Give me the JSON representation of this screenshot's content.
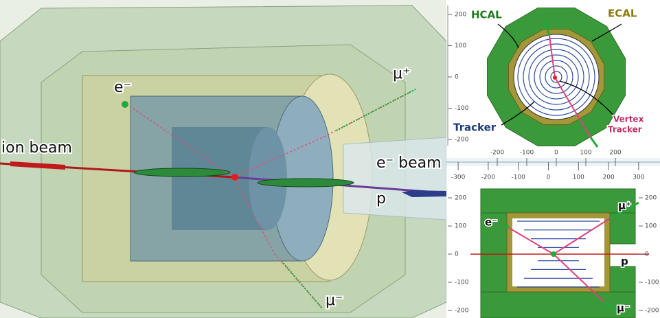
{
  "event_display": {
    "labels": {
      "ion_beam": "ion beam",
      "electron": "e⁻",
      "mu_plus": "μ⁺",
      "e_beam": "e⁻ beam",
      "proton": "p",
      "mu_minus": "μ⁻"
    }
  },
  "top_view": {
    "hcal": "HCAL",
    "ecal": "ECAL",
    "tracker": "Tracker",
    "vertex_tracker": [
      "Vertex",
      "Tracker"
    ],
    "yticks": [
      200,
      100,
      0,
      -100,
      -200
    ],
    "xticks": [
      -200,
      -100,
      0,
      100,
      200
    ]
  },
  "side_view": {
    "electron": "e⁻",
    "mu_plus": "μ⁺",
    "proton": "p",
    "mu_minus": "μ⁻",
    "xticks": [
      -300,
      -200,
      -100,
      0,
      100,
      200,
      300
    ],
    "yticks": [
      200,
      100,
      0,
      -100,
      -200
    ]
  }
}
